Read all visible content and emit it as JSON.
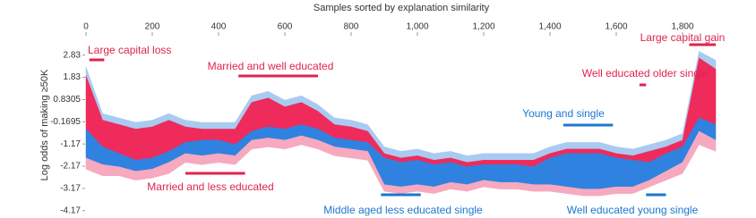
{
  "chart_data": {
    "type": "area",
    "x_label": "Samples sorted by explanation similarity",
    "y_label": "Log odds of making ≥50K",
    "xlim": [
      0,
      1900
    ],
    "ylim": [
      -4.3,
      3.7
    ],
    "xticks": [
      0,
      200,
      400,
      600,
      800,
      {
        "value": 1000,
        "label": "1,000"
      },
      {
        "value": 1200,
        "label": "1,200"
      },
      {
        "value": 1400,
        "label": "1,400"
      },
      {
        "value": 1600,
        "label": "1,600"
      },
      {
        "value": 1800,
        "label": "1,800"
      }
    ],
    "yticks": [
      2.83,
      1.83,
      0.8305,
      -0.1695,
      -1.17,
      -2.17,
      -3.17,
      -4.17
    ],
    "x": [
      0,
      50,
      100,
      150,
      200,
      250,
      300,
      350,
      400,
      450,
      500,
      550,
      600,
      650,
      700,
      750,
      800,
      850,
      900,
      950,
      1000,
      1050,
      1100,
      1150,
      1200,
      1250,
      1300,
      1350,
      1400,
      1450,
      1500,
      1550,
      1600,
      1650,
      1700,
      1750,
      1800,
      1850,
      1900
    ],
    "series": [
      {
        "color": "#a9cbf1",
        "values": [
          2.3,
          0.2,
          0.0,
          -0.2,
          -0.1,
          0.2,
          -0.1,
          -0.2,
          -0.2,
          -0.2,
          1.0,
          1.2,
          0.8,
          1.0,
          0.6,
          0.0,
          -0.1,
          -0.3,
          -1.3,
          -1.5,
          -1.4,
          -1.6,
          -1.5,
          -1.7,
          -1.6,
          -1.6,
          -1.6,
          -1.6,
          -1.3,
          -1.1,
          -1.1,
          -1.1,
          -1.3,
          -1.4,
          -1.2,
          -1.0,
          -0.7,
          3.0,
          2.6
        ]
      },
      {
        "color": "#ee2b5b",
        "values": [
          1.9,
          -0.1,
          -0.3,
          -0.5,
          -0.4,
          -0.1,
          -0.4,
          -0.5,
          -0.5,
          -0.5,
          0.7,
          0.9,
          0.5,
          0.7,
          0.3,
          -0.3,
          -0.4,
          -0.6,
          -1.6,
          -1.8,
          -1.7,
          -1.9,
          -1.8,
          -2.0,
          -1.9,
          -1.9,
          -1.9,
          -1.9,
          -1.6,
          -1.4,
          -1.4,
          -1.4,
          -1.6,
          -1.7,
          -1.5,
          -1.3,
          -1.0,
          2.7,
          2.2
        ]
      },
      {
        "color": "#2f82e0",
        "values": [
          -0.5,
          -1.3,
          -1.6,
          -1.9,
          -1.8,
          -1.5,
          -1.1,
          -1.0,
          -1.0,
          -1.2,
          -0.6,
          -0.4,
          -0.5,
          -0.3,
          -0.5,
          -0.9,
          -1.0,
          -1.1,
          -1.8,
          -2.0,
          -1.9,
          -2.1,
          -2.0,
          -2.2,
          -2.1,
          -2.1,
          -2.1,
          -2.2,
          -1.8,
          -1.6,
          -1.6,
          -1.6,
          -1.8,
          -1.9,
          -2.0,
          -1.6,
          -1.3,
          0.0,
          -0.3
        ]
      },
      {
        "color": "#f6a9bf",
        "values": [
          -1.8,
          -2.1,
          -2.2,
          -2.4,
          -2.3,
          -2.0,
          -1.6,
          -1.7,
          -1.6,
          -1.7,
          -1.0,
          -0.9,
          -1.0,
          -0.8,
          -1.0,
          -1.3,
          -1.4,
          -1.5,
          -3.0,
          -3.1,
          -3.0,
          -3.1,
          -2.9,
          -3.0,
          -2.8,
          -2.9,
          -2.9,
          -3.0,
          -3.0,
          -3.1,
          -3.2,
          -3.2,
          -3.1,
          -3.1,
          -2.8,
          -2.4,
          -2.0,
          -0.6,
          -1.0
        ]
      },
      {
        "values": [
          -2.3,
          -2.6,
          -2.6,
          -2.8,
          -2.7,
          -2.5,
          -2.0,
          -2.1,
          -2.0,
          -2.1,
          -1.4,
          -1.3,
          -1.4,
          -1.2,
          -1.4,
          -1.7,
          -1.8,
          -1.9,
          -3.3,
          -3.4,
          -3.3,
          -3.4,
          -3.2,
          -3.3,
          -3.1,
          -3.2,
          -3.2,
          -3.3,
          -3.3,
          -3.4,
          -3.5,
          -3.5,
          -3.4,
          -3.4,
          -3.1,
          -2.8,
          -2.5,
          -1.2,
          -1.5
        ]
      }
    ],
    "annotations": [
      {
        "text": "Large capital loss",
        "color": "#e0234e",
        "range": [
          10,
          55
        ]
      },
      {
        "text": "Married and well educated",
        "color": "#e0234e",
        "range": [
          460,
          700
        ]
      },
      {
        "text": "Married and less educated",
        "color": "#e0234e",
        "range": [
          300,
          480
        ]
      },
      {
        "text": "Middle aged less educated single",
        "color": "#1e76cf",
        "range": [
          890,
          1010
        ]
      },
      {
        "text": "Young and single",
        "color": "#1e76cf",
        "range": [
          1440,
          1590
        ]
      },
      {
        "text": "Well educated older single",
        "color": "#e0234e",
        "range": [
          1670,
          1690
        ]
      },
      {
        "text": "Well educated young single",
        "color": "#1e76cf",
        "range": [
          1690,
          1750
        ]
      },
      {
        "text": "Large capital gain",
        "color": "#e0234e",
        "range": [
          1820,
          1900
        ]
      }
    ]
  }
}
